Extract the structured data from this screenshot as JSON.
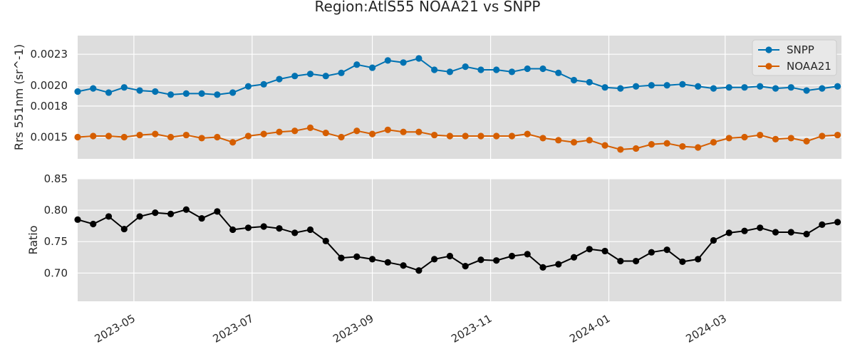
{
  "figure_title": "Region:AtlS55 NOAA21 vs SNPP",
  "colors": {
    "snpp": "#0072B2",
    "noaa21": "#D55E00",
    "ratio": "#000000",
    "panel_bg": "#DDDDDD",
    "grid": "#FFFFFF"
  },
  "chart_data": [
    {
      "type": "line",
      "panel": "top",
      "title": "",
      "xlabel": "",
      "ylabel": "Rrs 551nm (sr^-1)",
      "x_axis": "date",
      "xlim": [
        "2023-04-02",
        "2024-04-30"
      ],
      "ylim": [
        0.00129,
        0.00248
      ],
      "yticks": [
        0.0015,
        0.0018,
        0.002,
        0.0023
      ],
      "yticklabels": [
        "0.0015",
        "0.0018",
        "0.0020",
        "0.0023"
      ],
      "grid": true,
      "legend": "top-right",
      "x": [
        "2023-04-02",
        "2023-04-10",
        "2023-04-18",
        "2023-04-26",
        "2023-05-04",
        "2023-05-12",
        "2023-05-20",
        "2023-05-28",
        "2023-06-05",
        "2023-06-13",
        "2023-06-21",
        "2023-06-29",
        "2023-07-07",
        "2023-07-15",
        "2023-07-23",
        "2023-07-31",
        "2023-08-08",
        "2023-08-16",
        "2023-08-24",
        "2023-09-01",
        "2023-09-09",
        "2023-09-17",
        "2023-09-25",
        "2023-10-03",
        "2023-10-11",
        "2023-10-19",
        "2023-10-27",
        "2023-11-04",
        "2023-11-12",
        "2023-11-20",
        "2023-11-28",
        "2023-12-06",
        "2023-12-14",
        "2023-12-22",
        "2023-12-30",
        "2024-01-07",
        "2024-01-15",
        "2024-01-23",
        "2024-01-31",
        "2024-02-08",
        "2024-02-16",
        "2024-02-24",
        "2024-03-03",
        "2024-03-11",
        "2024-03-19",
        "2024-03-27",
        "2024-04-04",
        "2024-04-12",
        "2024-04-20",
        "2024-04-28"
      ],
      "series": [
        {
          "name": "SNPP",
          "values": [
            0.00194,
            0.00197,
            0.00193,
            0.00198,
            0.00195,
            0.00194,
            0.00191,
            0.00192,
            0.00192,
            0.00191,
            0.00193,
            0.00199,
            0.00201,
            0.00206,
            0.00209,
            0.00211,
            0.00209,
            0.00212,
            0.0022,
            0.00217,
            0.00224,
            0.00222,
            0.00226,
            0.00215,
            0.00213,
            0.00218,
            0.00215,
            0.00215,
            0.00213,
            0.00216,
            0.00216,
            0.00212,
            0.00205,
            0.00203,
            0.00198,
            0.00197,
            0.00199,
            0.002,
            0.002,
            0.00201,
            0.00199,
            0.00197,
            0.00198,
            0.00198,
            0.00199,
            0.00197,
            0.00198,
            0.00195,
            0.00197,
            0.00199
          ]
        },
        {
          "name": "NOAA21",
          "values": [
            0.0015,
            0.00151,
            0.00151,
            0.0015,
            0.00152,
            0.00153,
            0.0015,
            0.00152,
            0.00149,
            0.0015,
            0.00145,
            0.00151,
            0.00153,
            0.00155,
            0.00156,
            0.00159,
            0.00154,
            0.0015,
            0.00156,
            0.00153,
            0.00157,
            0.00155,
            0.00155,
            0.00152,
            0.00151,
            0.00151,
            0.00151,
            0.00151,
            0.00151,
            0.00153,
            0.00149,
            0.00147,
            0.00145,
            0.00147,
            0.00142,
            0.00138,
            0.00139,
            0.00143,
            0.00144,
            0.00141,
            0.0014,
            0.00145,
            0.00149,
            0.0015,
            0.00152,
            0.00148,
            0.00149,
            0.00146,
            0.00151,
            0.00152
          ]
        }
      ]
    },
    {
      "type": "line",
      "panel": "bottom",
      "title": "",
      "xlabel": "",
      "ylabel": "Ratio",
      "x_axis": "date",
      "xlim": [
        "2023-04-02",
        "2024-04-30"
      ],
      "ylim": [
        0.655,
        0.85
      ],
      "yticks": [
        0.7,
        0.75,
        0.8,
        0.85
      ],
      "yticklabels": [
        "0.70",
        "0.75",
        "0.80",
        "0.85"
      ],
      "xticks": [
        "2023-05-01",
        "2023-07-01",
        "2023-09-01",
        "2023-11-01",
        "2024-01-01",
        "2024-03-01"
      ],
      "xticklabels": [
        "2023-05",
        "2023-07",
        "2023-09",
        "2023-11",
        "2024-01",
        "2024-03"
      ],
      "grid": true,
      "x": [
        "2023-04-02",
        "2023-04-10",
        "2023-04-18",
        "2023-04-26",
        "2023-05-04",
        "2023-05-12",
        "2023-05-20",
        "2023-05-28",
        "2023-06-05",
        "2023-06-13",
        "2023-06-21",
        "2023-06-29",
        "2023-07-07",
        "2023-07-15",
        "2023-07-23",
        "2023-07-31",
        "2023-08-08",
        "2023-08-16",
        "2023-08-24",
        "2023-09-01",
        "2023-09-09",
        "2023-09-17",
        "2023-09-25",
        "2023-10-03",
        "2023-10-11",
        "2023-10-19",
        "2023-10-27",
        "2023-11-04",
        "2023-11-12",
        "2023-11-20",
        "2023-11-28",
        "2023-12-06",
        "2023-12-14",
        "2023-12-22",
        "2023-12-30",
        "2024-01-07",
        "2024-01-15",
        "2024-01-23",
        "2024-01-31",
        "2024-02-08",
        "2024-02-16",
        "2024-02-24",
        "2024-03-03",
        "2024-03-11",
        "2024-03-19",
        "2024-03-27",
        "2024-04-04",
        "2024-04-12",
        "2024-04-20",
        "2024-04-28"
      ],
      "series": [
        {
          "name": "",
          "values": [
            0.785,
            0.778,
            0.79,
            0.77,
            0.79,
            0.796,
            0.794,
            0.801,
            0.787,
            0.798,
            0.769,
            0.772,
            0.774,
            0.771,
            0.764,
            0.769,
            0.751,
            0.724,
            0.726,
            0.722,
            0.717,
            0.712,
            0.704,
            0.722,
            0.727,
            0.711,
            0.721,
            0.72,
            0.727,
            0.73,
            0.709,
            0.714,
            0.725,
            0.738,
            0.735,
            0.719,
            0.719,
            0.733,
            0.737,
            0.718,
            0.722,
            0.752,
            0.764,
            0.767,
            0.772,
            0.765,
            0.765,
            0.762,
            0.777,
            0.781
          ]
        }
      ]
    }
  ]
}
